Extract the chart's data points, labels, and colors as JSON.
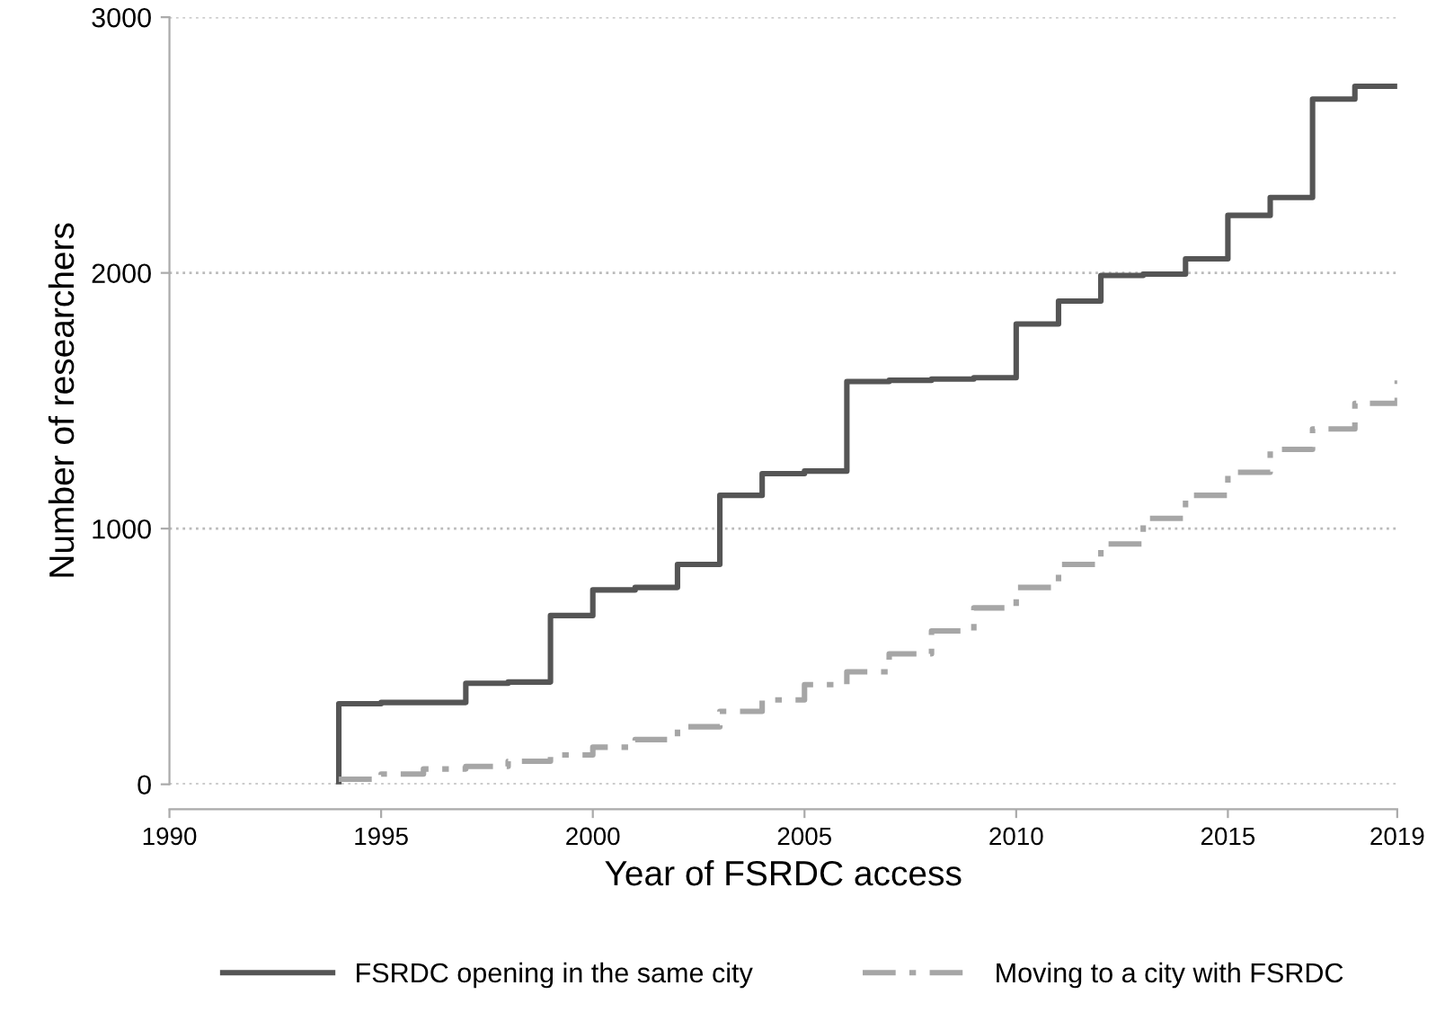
{
  "chart_data": {
    "type": "step",
    "xlabel": "Year of FSRDC access",
    "ylabel": "Number of researchers",
    "x": [
      1994,
      1995,
      1996,
      1997,
      1998,
      1999,
      2000,
      2001,
      2002,
      2003,
      2004,
      2005,
      2006,
      2007,
      2008,
      2009,
      2010,
      2011,
      2012,
      2013,
      2014,
      2015,
      2016,
      2017,
      2018,
      2019
    ],
    "series": [
      {
        "name": "FSRDC opening in the same city",
        "color": "#555555",
        "line_style": "solid",
        "x": [
          1994,
          1994,
          1995,
          1996,
          1997,
          1998,
          1999,
          2000,
          2001,
          2002,
          2003,
          2004,
          2005,
          2006,
          2007,
          2008,
          2009,
          2010,
          2011,
          2012,
          2013,
          2014,
          2015,
          2016,
          2017,
          2018,
          2019
        ],
        "values": [
          0,
          315,
          320,
          320,
          395,
          400,
          660,
          760,
          770,
          860,
          1130,
          1215,
          1225,
          1575,
          1580,
          1585,
          1590,
          1800,
          1890,
          1990,
          1995,
          2055,
          2225,
          2295,
          2680,
          2730,
          2730
        ]
      },
      {
        "name": "Moving to a city with FSRDC",
        "color": "#a6a6a6",
        "line_style": "dashed",
        "values": [
          20,
          40,
          60,
          70,
          90,
          115,
          145,
          175,
          225,
          285,
          330,
          390,
          440,
          510,
          600,
          690,
          770,
          860,
          940,
          1040,
          1130,
          1220,
          1310,
          1390,
          1490,
          1580
        ]
      }
    ],
    "xlim": [
      1990,
      2019
    ],
    "ylim": [
      0,
      3000
    ],
    "xticks": [
      1990,
      1995,
      2000,
      2005,
      2010,
      2015,
      2019
    ],
    "yticks": [
      0,
      1000,
      2000,
      3000
    ],
    "grid": "y",
    "legend": "bottom"
  }
}
